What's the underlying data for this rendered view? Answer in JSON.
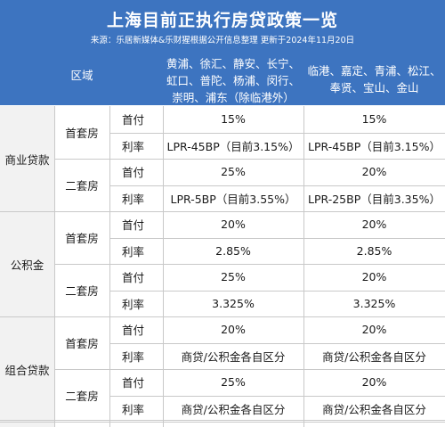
{
  "header": {
    "title": "上海目前正执行房贷政策一览",
    "source": "来源：乐居新媒体&乐财猩根据公开信息整理 更新于2024年11月20日"
  },
  "columns": {
    "region_label": "区域",
    "a_line1": "黄浦、徐汇、静安、长宁、",
    "a_line2": "虹口、普陀、杨浦、闵行、",
    "a_line3": "崇明、浦东（除临港外）",
    "b_line1": "临港、嘉定、青浦、松江、",
    "b_line2": "奉贤、宝山、金山"
  },
  "groups": [
    {
      "name": "商业贷款",
      "first": "首套房",
      "second": "二套房"
    },
    {
      "name": "公积金",
      "first": "首套房",
      "second": "二套房"
    },
    {
      "name": "组合贷款",
      "first": "首套房",
      "second": "二套房"
    }
  ],
  "labels": {
    "down": "首付",
    "rate": "利率"
  },
  "rows": [
    {
      "a": "15%",
      "b": "15%"
    },
    {
      "a": "LPR-45BP（目前3.15%）",
      "b": "LPR-45BP（目前3.15%）"
    },
    {
      "a": "25%",
      "b": "20%"
    },
    {
      "a": "LPR-5BP（目前3.55%）",
      "b": "LPR-25BP（目前3.35%）"
    },
    {
      "a": "20%",
      "b": "20%"
    },
    {
      "a": "2.85%",
      "b": "2.85%"
    },
    {
      "a": "25%",
      "b": "20%"
    },
    {
      "a": "3.325%",
      "b": "3.325%"
    },
    {
      "a": "20%",
      "b": "20%"
    },
    {
      "a": "商贷/公积金各自区分",
      "b": "商贷/公积金各自区分"
    },
    {
      "a": "25%",
      "b": "20%"
    },
    {
      "a": "商贷/公积金各自区分",
      "b": "商贷/公积金各自区分"
    }
  ],
  "colors": {
    "header_blue": "#3d74c0",
    "grid": "#c9c9c9"
  }
}
